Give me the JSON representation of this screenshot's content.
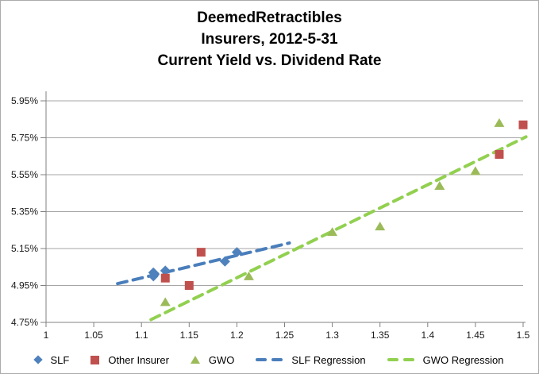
{
  "colors": {
    "background": "#ffffff",
    "chart_border": "#ababab",
    "gridline": "#a6a6a6",
    "axis": "#808080",
    "text": "#1a1a1a",
    "title_text": "#000000",
    "slf": "#4f81bd",
    "other_insurer": "#c0504d",
    "gwo": "#9bbb59",
    "slf_regression": "#4a7ebb",
    "gwo_regression": "#92d050"
  },
  "chart_data": {
    "type": "scatter",
    "title": "DeemedRetractibles",
    "subtitle_lines": [
      "Insurers, 2012-5-31",
      "Current Yield vs. Dividend Rate"
    ],
    "xlabel": "",
    "ylabel": "",
    "xlim": [
      1.0,
      1.5
    ],
    "ylim": [
      4.75,
      5.95
    ],
    "y_unit": "percent",
    "grid": "horizontal-only",
    "legend_position": "bottom",
    "x_ticks": [
      "1",
      "1.05",
      "1.1",
      "1.15",
      "1.2",
      "1.25",
      "1.3",
      "1.35",
      "1.4",
      "1.45",
      "1.5"
    ],
    "y_ticks": [
      "5.95%",
      "5.75%",
      "5.55%",
      "5.35%",
      "5.15%",
      "4.95%",
      "4.75%"
    ],
    "series": [
      {
        "name": "SLF",
        "kind": "scatter",
        "marker": "diamond",
        "color": "#4f81bd",
        "points": [
          [
            1.1125,
            5.02
          ],
          [
            1.1125,
            5.0
          ],
          [
            1.125,
            5.03
          ],
          [
            1.1875,
            5.08
          ],
          [
            1.2,
            5.13
          ]
        ]
      },
      {
        "name": "Other Insurer",
        "kind": "scatter",
        "marker": "square",
        "color": "#c0504d",
        "points": [
          [
            1.125,
            4.99
          ],
          [
            1.15,
            4.95
          ],
          [
            1.1625,
            5.13
          ],
          [
            1.475,
            5.66
          ],
          [
            1.5,
            5.82
          ]
        ]
      },
      {
        "name": "GWO",
        "kind": "scatter",
        "marker": "triangle",
        "color": "#9bbb59",
        "points": [
          [
            1.125,
            4.86
          ],
          [
            1.2125,
            5.0
          ],
          [
            1.3,
            5.24
          ],
          [
            1.35,
            5.27
          ],
          [
            1.4125,
            5.49
          ],
          [
            1.45,
            5.57
          ],
          [
            1.475,
            5.83
          ]
        ]
      },
      {
        "name": "SLF Regression",
        "kind": "line",
        "dashed": true,
        "color": "#4a7ebb",
        "points": [
          [
            1.075,
            4.96
          ],
          [
            1.255,
            5.18
          ]
        ]
      },
      {
        "name": "GWO Regression",
        "kind": "line",
        "dashed": true,
        "color": "#92d050",
        "points": [
          [
            1.11,
            4.765
          ],
          [
            1.503,
            5.755
          ]
        ]
      }
    ]
  }
}
